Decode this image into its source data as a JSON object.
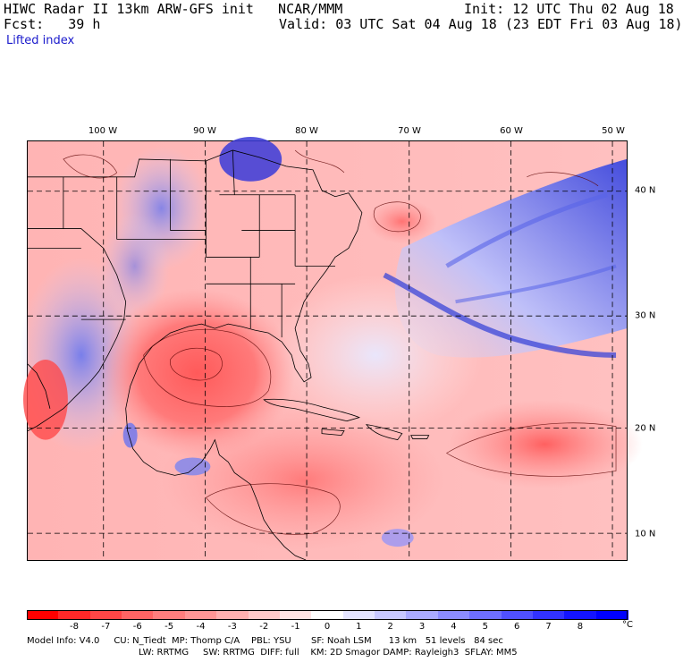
{
  "header": {
    "title": "HIWC Radar II 13km ARW-GFS init   NCAR/MMM",
    "init": "Init: 12 UTC Thu 02 Aug 18",
    "fcst": "Fcst:   39 h",
    "valid": "Valid: 03 UTC Sat 04 Aug 18 (23 EDT Fri 03 Aug 18)",
    "field": "Lifted index"
  },
  "map": {
    "lon_labels": [
      "100 W",
      "90 W",
      "80 W",
      "70 W",
      "60 W",
      "50 W"
    ],
    "lat_labels": [
      "40 N",
      "30 N",
      "20 N",
      "10 N"
    ]
  },
  "colorbar": {
    "labels": [
      "-8",
      "-7",
      "-6",
      "-5",
      "-4",
      "-3",
      "-2",
      "-1",
      "0",
      "1",
      "2",
      "3",
      "4",
      "5",
      "6",
      "7",
      "8"
    ],
    "unit": "°C",
    "colors": [
      "#ff0000",
      "#ff2828",
      "#ff4646",
      "#ff6464",
      "#ff7e7e",
      "#ff9696",
      "#ffb0b0",
      "#ffcaca",
      "#ffe4e4",
      "#ffffff",
      "#e4e4ff",
      "#c8c8ff",
      "#aaaaff",
      "#8c8cff",
      "#6e6eff",
      "#5050ff",
      "#3232ff",
      "#1414ff",
      "#0000ff"
    ]
  },
  "footer": {
    "line1": "Model Info: V4.0     CU: N_Tiedt  MP: Thomp C/A    PBL: YSU       SF: Noah LSM      13 km   51 levels   84 sec",
    "line2": "LW: RRTMG     SW: RRTMG  DIFF: full    KM: 2D Smagor DAMP: Rayleigh3  SFLAY: MM5"
  }
}
